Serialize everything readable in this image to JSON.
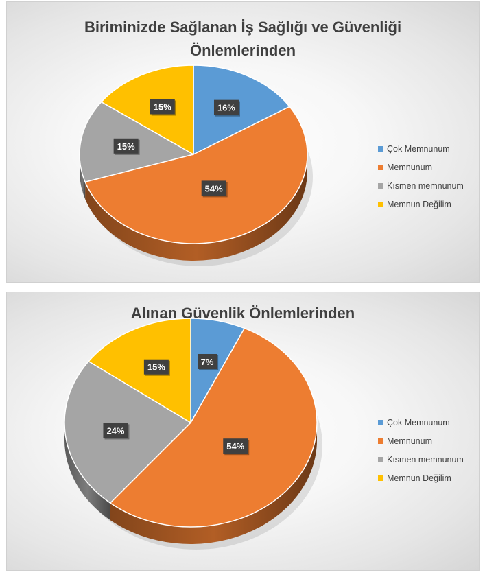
{
  "colors": {
    "cok_memnunum": "#5B9BD5",
    "memnunum": "#ED7D31",
    "kismen_memnunum": "#A5A5A5",
    "memnun_degilim": "#FFC000",
    "data_label_bg": "#404040",
    "data_label_text": "#ffffff"
  },
  "chart_data": [
    {
      "type": "pie",
      "title_line1": "Biriminizde Sağlanan İş Sağlığı ve Güvenliği",
      "title_line2": "Önlemlerinden",
      "categories": [
        "Çok Memnunum",
        "Memnunum",
        "Kısmen memnunum",
        "Memnun Değilim"
      ],
      "values": [
        16,
        54,
        15,
        15
      ],
      "labels": [
        "16%",
        "54%",
        "15%",
        "15%"
      ],
      "legend_position": "right",
      "style": "3d"
    },
    {
      "type": "pie",
      "title_line1": "Alınan Güvenlik Önlemlerinden",
      "title_line2": "",
      "categories": [
        "Çok Memnunum",
        "Memnunum",
        "Kısmen memnunum",
        "Memnun Değilim"
      ],
      "values": [
        7,
        54,
        24,
        15
      ],
      "labels": [
        "7%",
        "54%",
        "24%",
        "15%"
      ],
      "legend_position": "right",
      "style": "3d"
    }
  ]
}
